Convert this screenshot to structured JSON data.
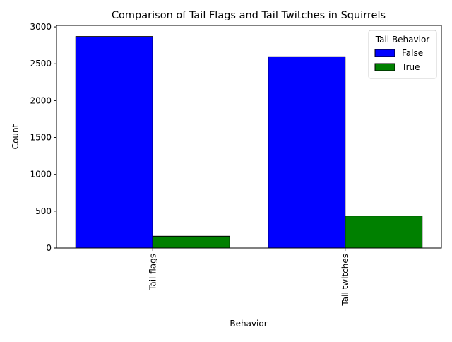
{
  "chart_data": {
    "type": "bar",
    "title": "Comparison of Tail Flags and Tail Twitches in Squirrels",
    "xlabel": "Behavior",
    "ylabel": "Count",
    "categories": [
      "Tail flags",
      "Tail twitches"
    ],
    "series": [
      {
        "name": "False",
        "values": [
          2870,
          2595
        ],
        "color": "#0000ff"
      },
      {
        "name": "True",
        "values": [
          160,
          435
        ],
        "color": "#008000"
      }
    ],
    "ylim": [
      0,
      3020
    ],
    "yticks": [
      0,
      500,
      1000,
      1500,
      2000,
      2500,
      3000
    ],
    "grid": false,
    "legend": {
      "title": "Tail Behavior",
      "placement": "top-right"
    }
  }
}
